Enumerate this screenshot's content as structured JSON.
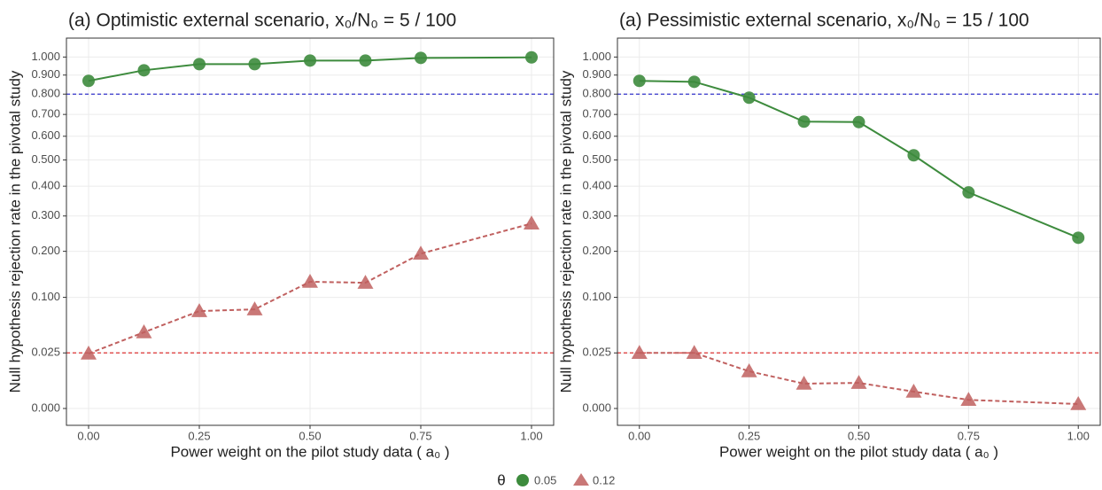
{
  "chart_data": [
    {
      "type": "line",
      "title": "(a) Optimistic external scenario, x₀/N₀ = 5 / 100",
      "xlabel": "Power weight on the pilot study data ( a₀ )",
      "ylabel": "Null hypothesis rejection rate in the pivotal study",
      "x": [
        0,
        0.125,
        0.25,
        0.375,
        0.5,
        0.625,
        0.75,
        1
      ],
      "series": [
        {
          "name": "0.05",
          "color": "#3d8b3d",
          "marker": "circle",
          "linestyle": "solid",
          "values": [
            0.869,
            0.926,
            0.96,
            0.96,
            0.98,
            0.98,
            0.995,
            0.998
          ]
        },
        {
          "name": "0.12",
          "color": "#c0605f",
          "marker": "triangle",
          "linestyle": "dashed",
          "values": [
            0.0244,
            0.047,
            0.0768,
            0.0796,
            0.13,
            0.128,
            0.194,
            0.277
          ]
        }
      ],
      "hlines": [
        {
          "value": 0.8,
          "color": "#3333cc"
        },
        {
          "value": 0.025,
          "color": "#dd3333"
        }
      ],
      "yscale": "sqrt",
      "grid": true,
      "xlim": [
        -0.05,
        1.05
      ],
      "ylim": [
        0,
        1.1
      ],
      "xticks": [
        {
          "value": 0,
          "label": "0.00"
        },
        {
          "value": 0.25,
          "label": "0.25"
        },
        {
          "value": 0.5,
          "label": "0.50"
        },
        {
          "value": 0.75,
          "label": "0.75"
        },
        {
          "value": 1,
          "label": "1.00"
        }
      ],
      "yticks": [
        {
          "value": 0,
          "label": "0.000"
        },
        {
          "value": 0.025,
          "label": "0.025"
        },
        {
          "value": 0.1,
          "label": "0.100"
        },
        {
          "value": 0.2,
          "label": "0.200"
        },
        {
          "value": 0.3,
          "label": "0.300"
        },
        {
          "value": 0.4,
          "label": "0.400"
        },
        {
          "value": 0.5,
          "label": "0.500"
        },
        {
          "value": 0.6,
          "label": "0.600"
        },
        {
          "value": 0.7,
          "label": "0.700"
        },
        {
          "value": 0.8,
          "label": "0.800"
        },
        {
          "value": 0.9,
          "label": "0.900"
        },
        {
          "value": 1,
          "label": "1.000"
        }
      ]
    },
    {
      "type": "line",
      "title": "(a) Pessimistic external scenario, x₀/N₀ = 15 / 100",
      "xlabel": "Power weight on the pilot study data ( a₀ )",
      "ylabel": "Null hypothesis rejection rate in the pivotal study",
      "x": [
        0,
        0.125,
        0.25,
        0.375,
        0.5,
        0.625,
        0.75,
        1
      ],
      "series": [
        {
          "name": "0.05",
          "color": "#3d8b3d",
          "marker": "circle",
          "linestyle": "solid",
          "values": [
            0.869,
            0.864,
            0.782,
            0.666,
            0.664,
            0.519,
            0.378,
            0.236
          ]
        },
        {
          "name": "0.12",
          "color": "#c0605f",
          "marker": "triangle",
          "linestyle": "dashed",
          "values": [
            0.025,
            0.025,
            0.0112,
            0.005,
            0.0053,
            0.0023,
            0.0006,
            0.00016
          ]
        }
      ],
      "hlines": [
        {
          "value": 0.8,
          "color": "#3333cc"
        },
        {
          "value": 0.025,
          "color": "#dd3333"
        }
      ],
      "yscale": "sqrt",
      "grid": true,
      "xlim": [
        -0.05,
        1.05
      ],
      "ylim": [
        0,
        1.1
      ],
      "xticks": [
        {
          "value": 0,
          "label": "0.00"
        },
        {
          "value": 0.25,
          "label": "0.25"
        },
        {
          "value": 0.5,
          "label": "0.50"
        },
        {
          "value": 0.75,
          "label": "0.75"
        },
        {
          "value": 1,
          "label": "1.00"
        }
      ],
      "yticks": [
        {
          "value": 0,
          "label": "0.000"
        },
        {
          "value": 0.025,
          "label": "0.025"
        },
        {
          "value": 0.1,
          "label": "0.100"
        },
        {
          "value": 0.2,
          "label": "0.200"
        },
        {
          "value": 0.3,
          "label": "0.300"
        },
        {
          "value": 0.4,
          "label": "0.400"
        },
        {
          "value": 0.5,
          "label": "0.500"
        },
        {
          "value": 0.6,
          "label": "0.600"
        },
        {
          "value": 0.7,
          "label": "0.700"
        },
        {
          "value": 0.8,
          "label": "0.800"
        },
        {
          "value": 0.9,
          "label": "0.900"
        },
        {
          "value": 1,
          "label": "1.000"
        }
      ]
    }
  ],
  "legend": {
    "title": "θ",
    "position": "bottom"
  }
}
